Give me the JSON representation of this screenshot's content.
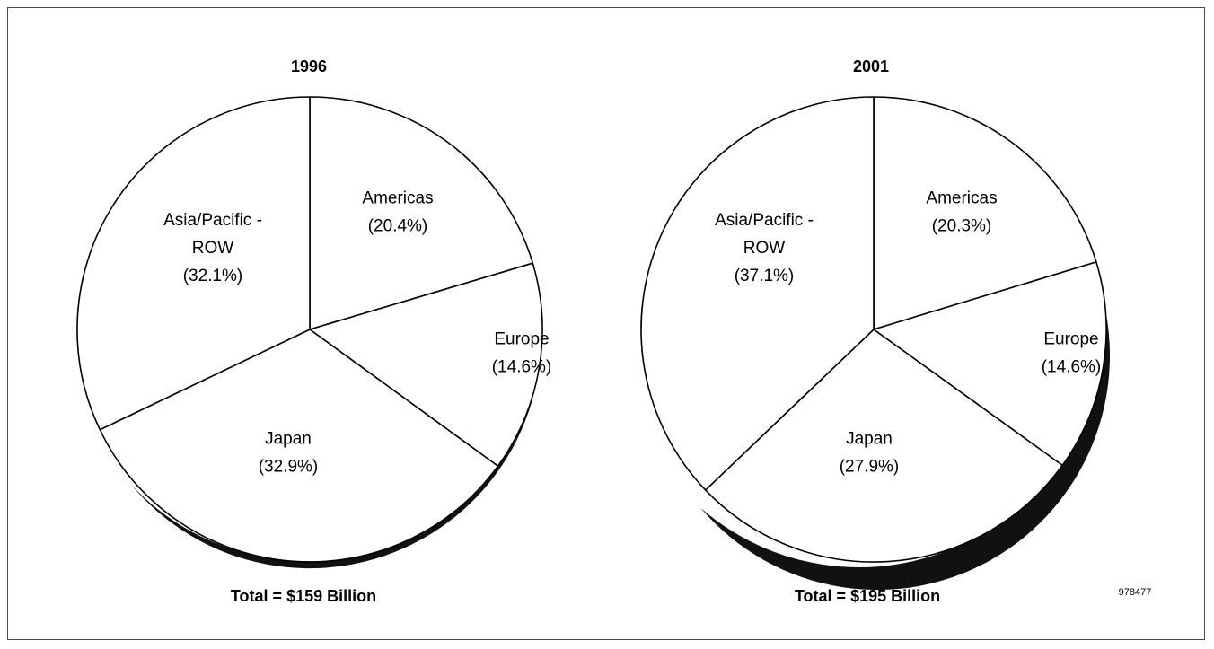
{
  "chart_data": [
    {
      "type": "pie",
      "title": "1996",
      "slices": [
        {
          "label": "Americas",
          "pct_text": "(20.4%)",
          "value": 20.4
        },
        {
          "label": "Europe",
          "pct_text": "(14.6%)",
          "value": 14.6
        },
        {
          "label": "Japan",
          "pct_text": "(32.9%)",
          "value": 32.9
        },
        {
          "label": "Asia/Pacific -",
          "label2": "ROW",
          "pct_text": "(32.1%)",
          "value": 32.1
        }
      ],
      "total_text": "Total = $159 Billion"
    },
    {
      "type": "pie",
      "title": "2001",
      "slices": [
        {
          "label": "Americas",
          "pct_text": "(20.3%)",
          "value": 20.3
        },
        {
          "label": "Europe",
          "pct_text": "(14.6%)",
          "value": 14.6
        },
        {
          "label": "Japan",
          "pct_text": "(27.9%)",
          "value": 27.9
        },
        {
          "label": "Asia/Pacific -",
          "label2": "ROW",
          "pct_text": "(37.1%)",
          "value": 37.1
        }
      ],
      "total_text": "Total = $195 Billion"
    }
  ],
  "figure_id": "978477",
  "colors": {
    "fill": "#ffffff",
    "stroke": "#000000",
    "shadow": "#111111",
    "frame": "#4a4a4a"
  }
}
